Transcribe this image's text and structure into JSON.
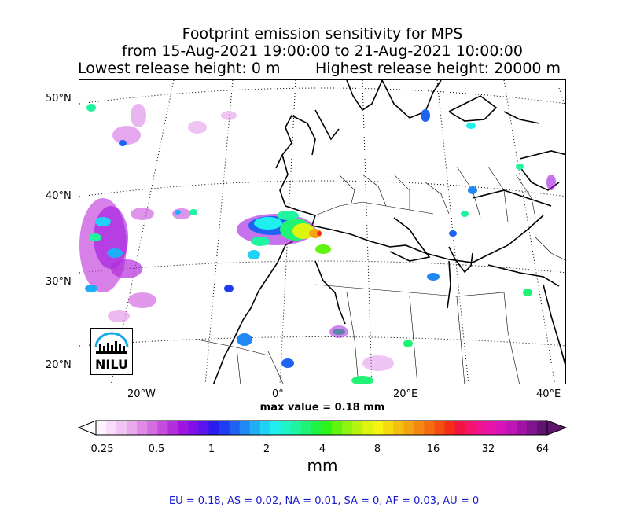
{
  "title": {
    "line1": "Footprint emission sensitivity for MPS",
    "line2": "from 15-Aug-2021 19:00:00 to 21-Aug-2021 10:00:00",
    "lowest_release": "Lowest release height: 0 m",
    "highest_release": "Highest release height: 20000 m"
  },
  "axes": {
    "lat_labels": [
      "50°N",
      "40°N",
      "30°N",
      "20°N"
    ],
    "lon_labels": [
      "20°W",
      "0°",
      "20°E",
      "40°E"
    ]
  },
  "max_value": "max value = 0.18 mm",
  "colorbar": {
    "tick_labels": [
      "0.25",
      "0.5",
      "1",
      "2",
      "4",
      "8",
      "16",
      "32",
      "64"
    ],
    "unit": "mm",
    "colors": [
      "#fdf3fd",
      "#f8dcf8",
      "#f2c4f4",
      "#eaa8ee",
      "#e08ae8",
      "#d46ce2",
      "#c64cde",
      "#b42edc",
      "#9f14e0",
      "#8010e8",
      "#5a14ec",
      "#2a1cee",
      "#1f3cf0",
      "#1f62f2",
      "#1f88f4",
      "#1faef6",
      "#1fd2f6",
      "#1ff0ee",
      "#1ff4c8",
      "#1ff49e",
      "#1ff474",
      "#1ff446",
      "#2af418",
      "#60f410",
      "#8cf410",
      "#b4f410",
      "#dcf410",
      "#f4f410",
      "#f4dc10",
      "#f4c010",
      "#f4a410",
      "#f48810",
      "#f46c10",
      "#f44e10",
      "#f42c18",
      "#f41444",
      "#f4146c",
      "#f01490",
      "#e814a8",
      "#d814b8",
      "#c014b8",
      "#a014a4",
      "#80148c",
      "#601470"
    ]
  },
  "summary": "EU = 0.18,  AS = 0.02,  NA = 0.01,  SA = 0,  AF = 0.03,  AU = 0",
  "logo": {
    "text": "NILU",
    "ring_color": "#1aa7e8"
  }
}
